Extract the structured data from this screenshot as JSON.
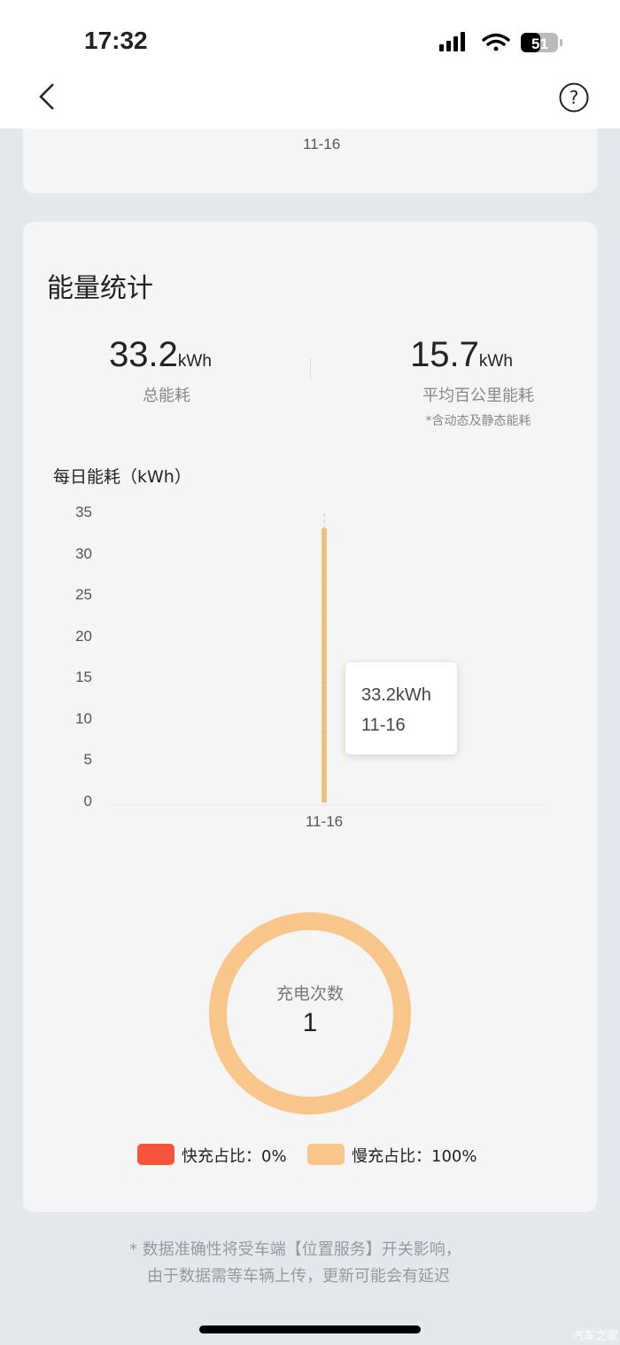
{
  "status_bar": {
    "time": "17:32",
    "battery": "51"
  },
  "nav": {
    "back_icon": "chevron-left-icon",
    "help_icon": "question-circle-icon"
  },
  "prev_card": {
    "x_label": "11-16"
  },
  "energy": {
    "title": "能量统计",
    "total": {
      "value": "33.2",
      "unit": "kWh",
      "label": "总能耗"
    },
    "avg": {
      "value": "15.7",
      "unit": "kWh",
      "label": "平均百公里能耗",
      "note": "*含动态及静态能耗"
    }
  },
  "chart_data": {
    "type": "bar",
    "title": "每日能耗（kWh）",
    "categories": [
      "11-16"
    ],
    "values": [
      33.2
    ],
    "ylim": [
      0,
      35
    ],
    "yticks": [
      "0",
      "5",
      "10",
      "15",
      "20",
      "25",
      "30",
      "35"
    ],
    "color": "#f1c27a",
    "tooltip": {
      "value": "33.2kWh",
      "date": "11-16"
    }
  },
  "charging": {
    "label": "充电次数",
    "count": "1",
    "fast": {
      "label": "快充占比：0%",
      "percent": 0,
      "color": "#f4533c"
    },
    "slow": {
      "label": "慢充占比：100%",
      "percent": 100,
      "color": "#f8c58a"
    }
  },
  "footer": {
    "line1": "* 数据准确性将受车端【位置服务】开关影响，",
    "line2": "由于数据需等车辆上传，更新可能会有延迟"
  },
  "watermark": "汽车之家"
}
